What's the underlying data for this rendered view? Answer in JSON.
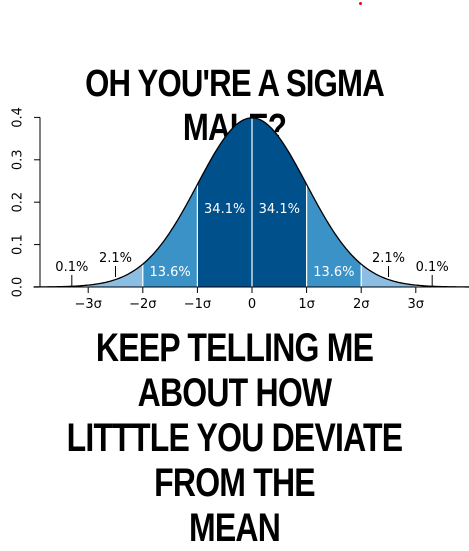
{
  "meme": {
    "top_text": "OH YOU'RE A SIGMA MALE?",
    "bottom_line1": "KEEP TELLING ME ABOUT HOW",
    "bottom_line2": "LITTTLE YOU DEVIATE FROM THE",
    "bottom_line3": "MEAN"
  },
  "colors": {
    "band_1": "#00508c",
    "band_2": "#3a92c7",
    "band_3": "#8cbde3",
    "band_4": "#c6e0f2",
    "curve": "#000000",
    "divider": "#ffffff"
  },
  "chart_data": {
    "type": "area",
    "title": "",
    "xlabel": "",
    "ylabel": "",
    "x_ticks": [
      "−3σ",
      "−2σ",
      "−1σ",
      "0",
      "1σ",
      "2σ",
      "3σ"
    ],
    "y_ticks": [
      "0.0",
      "0.1",
      "0.2",
      "0.3",
      "0.4"
    ],
    "xlim": [
      -4,
      4
    ],
    "ylim": [
      0,
      0.4
    ],
    "bands": [
      {
        "from": -1,
        "to": 0,
        "label": "34.1%"
      },
      {
        "from": 0,
        "to": 1,
        "label": "34.1%"
      },
      {
        "from": -2,
        "to": -1,
        "label": "13.6%"
      },
      {
        "from": 1,
        "to": 2,
        "label": "13.6%"
      },
      {
        "from": -3,
        "to": -2,
        "label": "2.1%"
      },
      {
        "from": 2,
        "to": 3,
        "label": "2.1%"
      },
      {
        "from": -4,
        "to": -3,
        "label": "0.1%"
      },
      {
        "from": 3,
        "to": 4,
        "label": "0.1%"
      }
    ]
  }
}
